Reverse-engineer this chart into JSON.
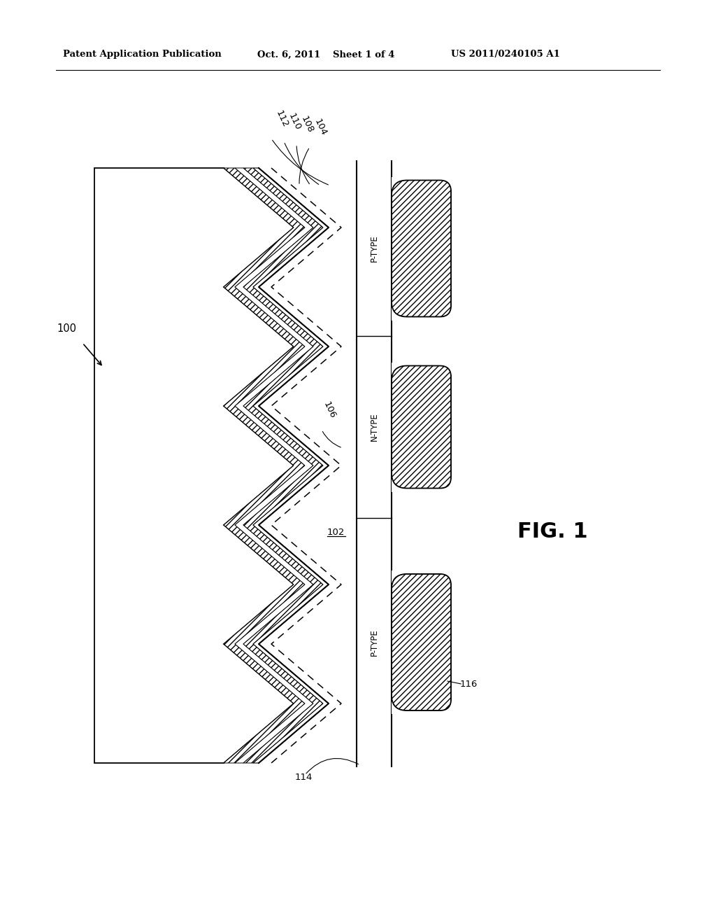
{
  "bg_color": "#ffffff",
  "header_line1": "Patent Application Publication",
  "header_date": "Oct. 6, 2011",
  "header_sheet": "Sheet 1 of 4",
  "header_patent": "US 2011/0240105 A1",
  "fig_label": "FIG. 1",
  "label_100": "100",
  "label_102": "102",
  "label_104": "104",
  "label_106": "106",
  "label_108": "108",
  "label_110": "110",
  "label_112": "112",
  "label_114": "114",
  "label_116": "116",
  "label_ptype1": "P-TYPE",
  "label_ntype": "N-TYPE",
  "label_ptype2": "P-TYPE",
  "hatch_pattern": "////",
  "line_color": "#000000"
}
